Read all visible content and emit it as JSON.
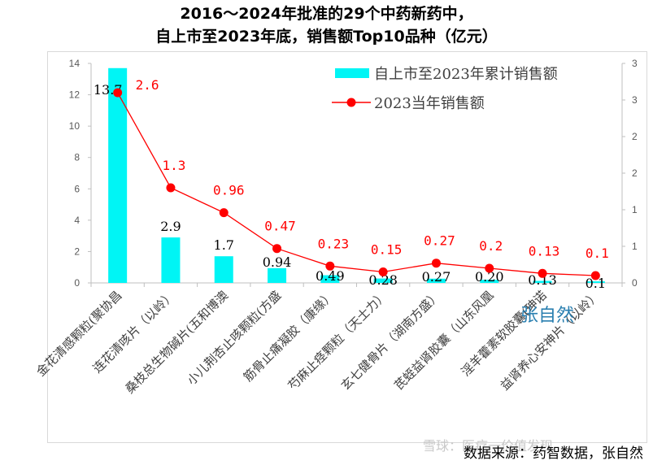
{
  "header": {
    "title_line1": "2016～2024年批准的29个中药新药中，",
    "title_line2": "自上市至2023年底，销售额Top10品种（亿元）"
  },
  "footer": {
    "source": "数据来源：药智数据，张自然",
    "watermark": "雪球：医疗一价值发现",
    "stamp": "张自然"
  },
  "colors": {
    "bar": "#00f5f5",
    "line": "#ff0000",
    "marker": "#ff0000",
    "axis": "#bfbfbf",
    "bar_label": "#000000",
    "line_label": "#ff0000"
  },
  "chart_data": {
    "type": "bar",
    "categories": [
      "金花清感颗粒(聚协昌",
      "连花清咳片（以岭）",
      "桑枝总生物碱片(五和博澳",
      "小儿荆杏止咳颗粒(方盛",
      "筋骨止痛凝胶（康缘）",
      "芍麻止痉颗粒（天士力）",
      "玄七健骨片（湖南方盛）",
      "芪蛭益肾胶囊（山东风凰",
      "淫羊藿素软胶囊(珅诺",
      "益肾养心安神片（以岭）"
    ],
    "series": [
      {
        "name": "自上市至2023年累计销售额",
        "type": "bar",
        "axis": "left",
        "values": [
          13.7,
          2.9,
          1.7,
          0.94,
          0.49,
          0.28,
          0.27,
          0.2,
          0.13,
          0.1
        ],
        "labels": [
          "13.7",
          "2.9",
          "1.7",
          "0.94",
          "0.49",
          "0.28",
          "0.27",
          "0.20",
          "0.13",
          "0.1"
        ]
      },
      {
        "name": "2023当年销售额",
        "type": "line",
        "axis": "right",
        "values": [
          2.6,
          1.3,
          0.96,
          0.47,
          0.23,
          0.15,
          0.27,
          0.2,
          0.13,
          0.1
        ],
        "labels": [
          "2.6",
          "1.3",
          "0.96",
          "0.47",
          "0.23",
          "0.15",
          "0.27",
          "0.2",
          "0.13",
          "0.1"
        ]
      }
    ],
    "y_left": {
      "ylim": [
        0,
        14
      ],
      "ticks": [
        "0",
        "2",
        "4",
        "6",
        "8",
        "10",
        "12",
        "14"
      ]
    },
    "y_right": {
      "ylim": [
        0,
        3
      ],
      "ticks": [
        "0",
        "1",
        "1",
        "2",
        "2",
        "3",
        "3"
      ]
    },
    "grid": false,
    "legend_position": "top-right"
  }
}
